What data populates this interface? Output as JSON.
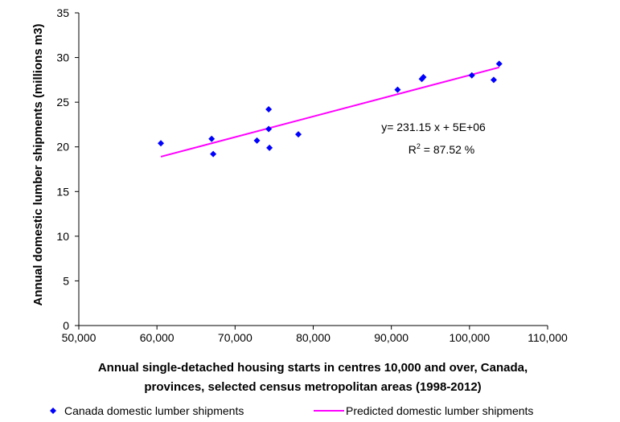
{
  "chart_data": {
    "type": "scatter",
    "xlabel": "Annual single-detached housing starts in centres 10,000 and over, Canada, provinces, selected census metropolitan areas (1998-2012)",
    "xlabel_lines": [
      "Annual single-detached housing starts in centres 10,000 and over, Canada,",
      "provinces, selected census metropolitan areas (1998-2012)"
    ],
    "ylabel": "Annual domestic lumber shipments (millions m3)",
    "xlim": [
      50000,
      110000
    ],
    "ylim": [
      0,
      35
    ],
    "x_ticks": [
      50000,
      60000,
      70000,
      80000,
      90000,
      100000,
      110000
    ],
    "x_tick_labels": [
      "50,000",
      "60,000",
      "70,000",
      "80,000",
      "90,000",
      "100,000",
      "110,000"
    ],
    "y_ticks": [
      0,
      5,
      10,
      15,
      20,
      25,
      30,
      35
    ],
    "y_tick_labels": [
      "0",
      "5",
      "10",
      "15",
      "20",
      "25",
      "30",
      "35"
    ],
    "grid": false,
    "legend_position": "bottom",
    "series": [
      {
        "name": "Canada domestic lumber shipments",
        "kind": "points",
        "marker": "diamond",
        "color": "#0000ff",
        "points": [
          [
            60500,
            20.4
          ],
          [
            67000,
            20.9
          ],
          [
            67200,
            19.2
          ],
          [
            72800,
            20.7
          ],
          [
            74300,
            24.2
          ],
          [
            74300,
            22.0
          ],
          [
            74400,
            19.9
          ],
          [
            78100,
            21.4
          ],
          [
            90800,
            26.4
          ],
          [
            93900,
            27.6
          ],
          [
            94100,
            27.8
          ],
          [
            100300,
            28.0
          ],
          [
            103100,
            27.5
          ],
          [
            103800,
            29.3
          ]
        ]
      },
      {
        "name": "Predicted domestic lumber shipments",
        "kind": "line",
        "color": "#ff00ff",
        "points": [
          [
            60500,
            18.9
          ],
          [
            103800,
            28.9
          ]
        ]
      }
    ],
    "annotations": {
      "equation": "y= 231.15 x + 5E+06",
      "r_squared_prefix": "R",
      "r_squared_exponent": "2",
      "r_squared_value": " = 87.52 %"
    }
  }
}
